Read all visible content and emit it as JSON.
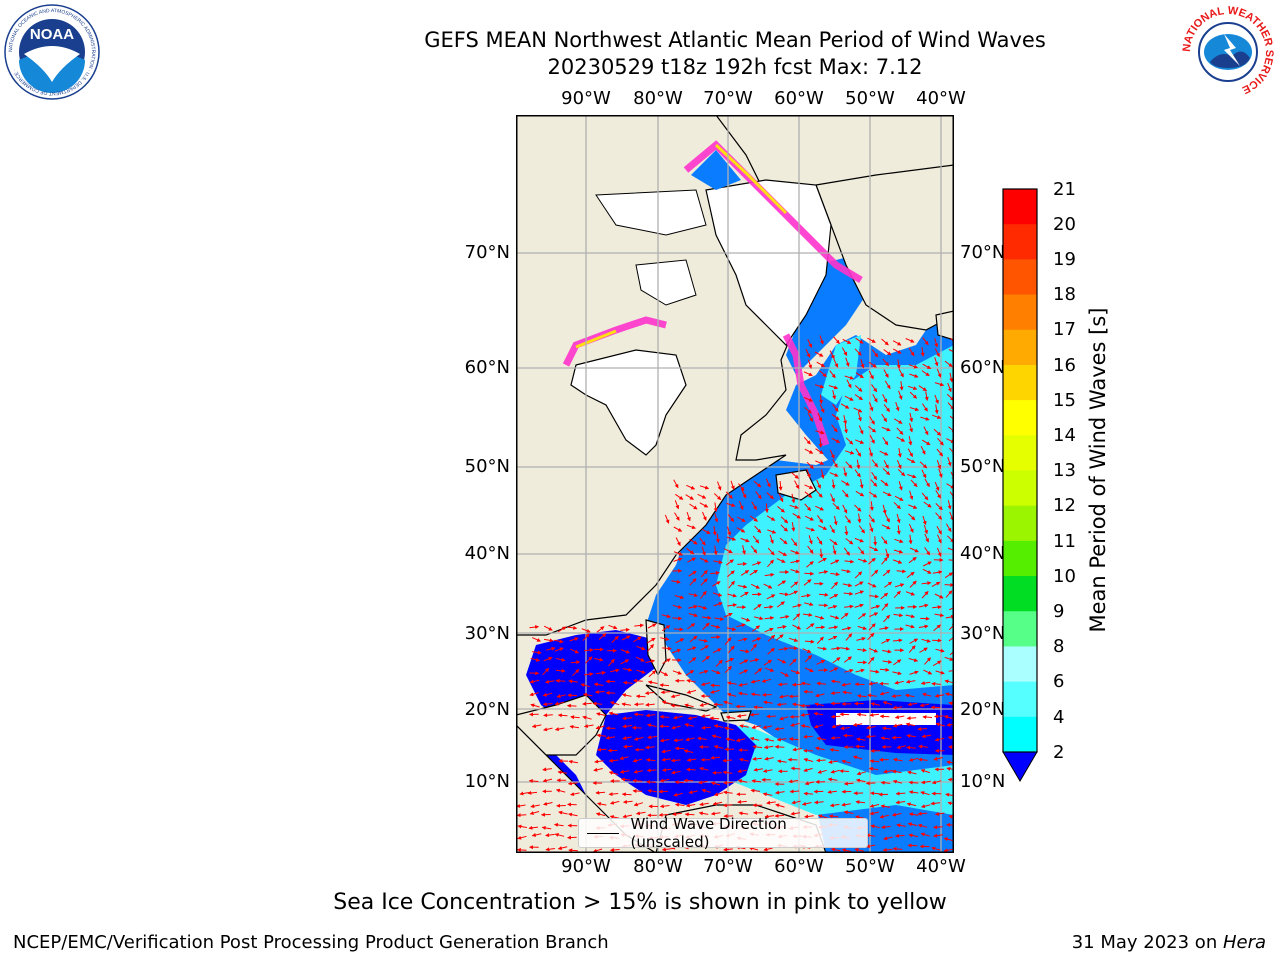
{
  "title": {
    "line1": "GEFS MEAN Northwest Atlantic Mean Period of Wind Waves",
    "line2": "20230529 t18z 192h fcst   Max: 7.12"
  },
  "map": {
    "lat_labels": [
      "70°N",
      "60°N",
      "50°N",
      "40°N",
      "30°N",
      "20°N",
      "10°N"
    ],
    "lon_labels": [
      "90°W",
      "80°W",
      "70°W",
      "60°W",
      "50°W",
      "40°W"
    ],
    "colors": {
      "land": "#efecdc",
      "ocean_deep": "#0000ff",
      "ocean_mid": "#0a7cff",
      "ocean_light": "#3ff2ff",
      "ice_pink": "#ff33cc",
      "ice_yellow": "#ffee00",
      "arrows": "#ff0000",
      "grid": "#b0b0b0"
    }
  },
  "legend": {
    "label": "Wind Wave Direction (unscaled)"
  },
  "colorbar": {
    "label": "Mean Period of Wind Waves [s]",
    "ticks": [
      "21",
      "20",
      "19",
      "18",
      "17",
      "16",
      "15",
      "14",
      "13",
      "12",
      "11",
      "10",
      "9",
      "8",
      "6",
      "4",
      "2"
    ],
    "colors": [
      "#ff0000",
      "#ff2a00",
      "#ff5500",
      "#ff8000",
      "#ffaa00",
      "#ffd500",
      "#ffff00",
      "#e5ff00",
      "#ccff00",
      "#9cf500",
      "#55ee00",
      "#00dd22",
      "#55ff88",
      "#aaffff",
      "#55ffff",
      "#00ffff",
      "#0a7cff",
      "#0000ff"
    ]
  },
  "logos": {
    "noaa_text": "NOAA",
    "noaa_ring": "NATIONAL OCEANIC AND ATMOSPHERIC ADMINISTRATION · U.S. DEPARTMENT OF COMMERCE ·",
    "nws_ring": "NATIONAL WEATHER SERVICE"
  },
  "note": "Sea Ice Concentration > 15% is shown in pink to yellow",
  "footer": {
    "left": "NCEP/EMC/Verification Post Processing Product Generation Branch",
    "right_prefix": "31 May 2023 on ",
    "right_host": "Hera"
  }
}
